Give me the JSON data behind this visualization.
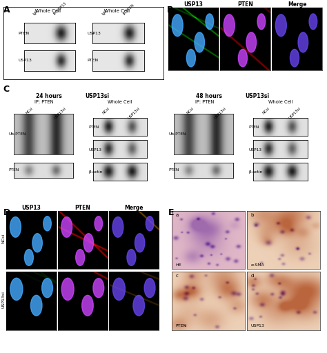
{
  "panel_A_label": "A",
  "panel_B_label": "B",
  "panel_C_label": "C",
  "panel_D_label": "D",
  "panel_E_label": "E",
  "bg_color": "#ffffff",
  "panel_A": {
    "left_header": "Whole Cell",
    "right_header": "Whole Cell",
    "left_col1": "IgG",
    "left_col2": "IP:USP13",
    "right_col1": "IgG",
    "right_col2": "IP:PTEN",
    "row1_left_label": "PTEN",
    "row2_left_label": "USP13",
    "row1_right_label": "USP13",
    "row2_right_label": "PTEN"
  },
  "panel_B": {
    "col1": "USP13",
    "col2": "PTEN",
    "col3": "Merge"
  },
  "panel_C_left": {
    "header": "24 hours",
    "header2": "USP13si",
    "ip_label": "IP: PTEN",
    "wc_label": "Whole Cell",
    "col1": "NCsi",
    "col2": "USP13si",
    "row_labels_ip": [
      "Ub-PTEN",
      "PTEN"
    ],
    "row_labels_wc": [
      "PTEN",
      "USP13",
      "β-actin"
    ]
  },
  "panel_C_right": {
    "header": "48 hours",
    "header2": "USP13si",
    "ip_label": "IP: PTEN",
    "wc_label": "Whole Cell",
    "col1": "NCsi",
    "col2": "USP13si",
    "row_labels_ip": [
      "Ub-PTEN",
      "PTEN"
    ],
    "row_labels_wc": [
      "PTEN",
      "USP13",
      "β-actin"
    ]
  },
  "panel_D": {
    "col_labels": [
      "USP13",
      "PTEN",
      "Merge"
    ],
    "row_labels": [
      "NCsi",
      "USP13si"
    ]
  },
  "panel_E": {
    "labels": [
      "a",
      "b",
      "c",
      "d"
    ],
    "sublabels": [
      "HE",
      "α-SMA",
      "PTEN",
      "USP13"
    ]
  }
}
